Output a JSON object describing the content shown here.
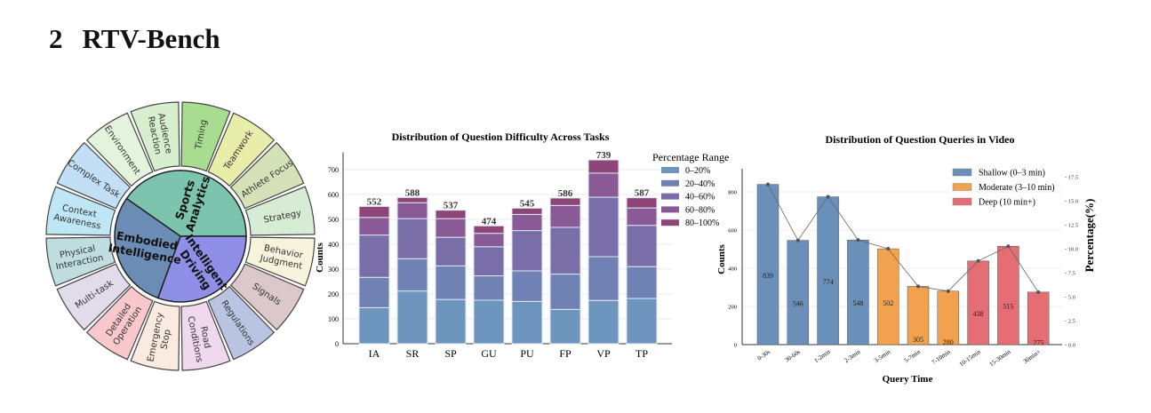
{
  "section": {
    "number": "2",
    "title": "RTV-Bench"
  },
  "wheel": {
    "inner": [
      {
        "label": [
          "Sports",
          "Analytics"
        ],
        "start": -55,
        "end": 90,
        "color": "#7cc4ae"
      },
      {
        "label": [
          "Intelligent",
          "Driving"
        ],
        "start": 90,
        "end": 200,
        "color": "#8f8fe8"
      },
      {
        "label": [
          "Embodied",
          "Intelligence"
        ],
        "start": 200,
        "end": 305,
        "color": "#6b8db5"
      }
    ],
    "outer": [
      {
        "label": [
          "Audience",
          "Reaction"
        ],
        "color": "#d8efcf"
      },
      {
        "label": [
          "Timing"
        ],
        "color": "#a8dc90"
      },
      {
        "label": [
          "Teamwork"
        ],
        "color": "#e8eeaa"
      },
      {
        "label": [
          "Athlete Focus"
        ],
        "color": "#d5e2b8"
      },
      {
        "label": [
          "Strategy"
        ],
        "color": "#d6ecd4"
      },
      {
        "label": [
          "Behavior",
          "Judgment"
        ],
        "color": "#f8f3dc"
      },
      {
        "label": [
          "Signals"
        ],
        "color": "#dcc8cc"
      },
      {
        "label": [
          "Regulations"
        ],
        "color": "#b8c4e2"
      },
      {
        "label": [
          "Road",
          "Conditions"
        ],
        "color": "#f0d8ee"
      },
      {
        "label": [
          "Emergency",
          "Stop"
        ],
        "color": "#faeadf"
      },
      {
        "label": [
          "Detailed",
          "Operation"
        ],
        "color": "#f8c8cc"
      },
      {
        "label": [
          "Multi-task"
        ],
        "color": "#e2dcea"
      },
      {
        "label": [
          "Physical",
          "Interaction"
        ],
        "color": "#c0dde0"
      },
      {
        "label": [
          "Context",
          "Awareness"
        ],
        "color": "#bfe6f5"
      },
      {
        "label": [
          "Complex Task"
        ],
        "color": "#c3dff5"
      },
      {
        "label": [
          "Environment"
        ],
        "color": "#e4f4dc"
      }
    ]
  },
  "chart_data": [
    {
      "type": "bar",
      "stacked": true,
      "title": "Distribution of Question Difficulty Across Tasks",
      "xlabel": "",
      "ylabel": "Counts",
      "ylim": [
        0,
        770
      ],
      "yticks": [
        0,
        100,
        200,
        300,
        400,
        500,
        600,
        700
      ],
      "grid": true,
      "legend_title": "Percentage Range",
      "legend_position": "top-right",
      "categories": [
        "IA",
        "SR",
        "SP",
        "GU",
        "PU",
        "FP",
        "VP",
        "TP"
      ],
      "totals": [
        552,
        588,
        537,
        474,
        545,
        586,
        739,
        587
      ],
      "series": [
        {
          "name": "0–20%",
          "color": "#6e95bd",
          "values": [
            145,
            212,
            178,
            175,
            170,
            138,
            174,
            182
          ]
        },
        {
          "name": "20–40%",
          "color": "#6f82b3",
          "values": [
            122,
            130,
            135,
            98,
            123,
            142,
            176,
            128
          ]
        },
        {
          "name": "40–60%",
          "color": "#7a6ea8",
          "values": [
            170,
            161,
            115,
            117,
            162,
            188,
            239,
            166
          ]
        },
        {
          "name": "60–80%",
          "color": "#8a5a96",
          "values": [
            71,
            64,
            75,
            54,
            65,
            88,
            97,
            70
          ]
        },
        {
          "name": "80–100%",
          "color": "#8e4678",
          "values": [
            44,
            21,
            34,
            30,
            25,
            30,
            53,
            41
          ]
        }
      ]
    },
    {
      "type": "bar",
      "title": "Distribution of Question Queries in Video",
      "xlabel": "Query Time",
      "ylabel": "Counts",
      "y2label": "Percentage(%)",
      "ylim": [
        0,
        920
      ],
      "yticks": [
        0,
        200,
        400,
        600,
        800
      ],
      "y2ticks": [
        "0.0",
        "2.5",
        "5.0",
        "7.5",
        "10.0",
        "12.5",
        "15.0",
        "17.5"
      ],
      "grid": true,
      "legend_position": "top-right",
      "categories": [
        "0-30s",
        "30-60s",
        "1-2min",
        "2-3min",
        "3-5min",
        "5-7min",
        "7-10min",
        "10-15min",
        "15-30min",
        "30min+"
      ],
      "values": [
        839,
        546,
        774,
        548,
        502,
        305,
        280,
        438,
        515,
        275
      ],
      "groups": [
        0,
        0,
        0,
        0,
        1,
        1,
        1,
        2,
        2,
        2
      ],
      "legend": [
        {
          "name": "Shallow (0–3 min)",
          "color": "#6a8fb8"
        },
        {
          "name": "Moderate (3–10 min)",
          "color": "#f2a24f"
        },
        {
          "name": "Deep (10 min+)",
          "color": "#e46e73"
        }
      ],
      "line_series": {
        "name": "Percentage",
        "color": "#666666"
      }
    }
  ]
}
